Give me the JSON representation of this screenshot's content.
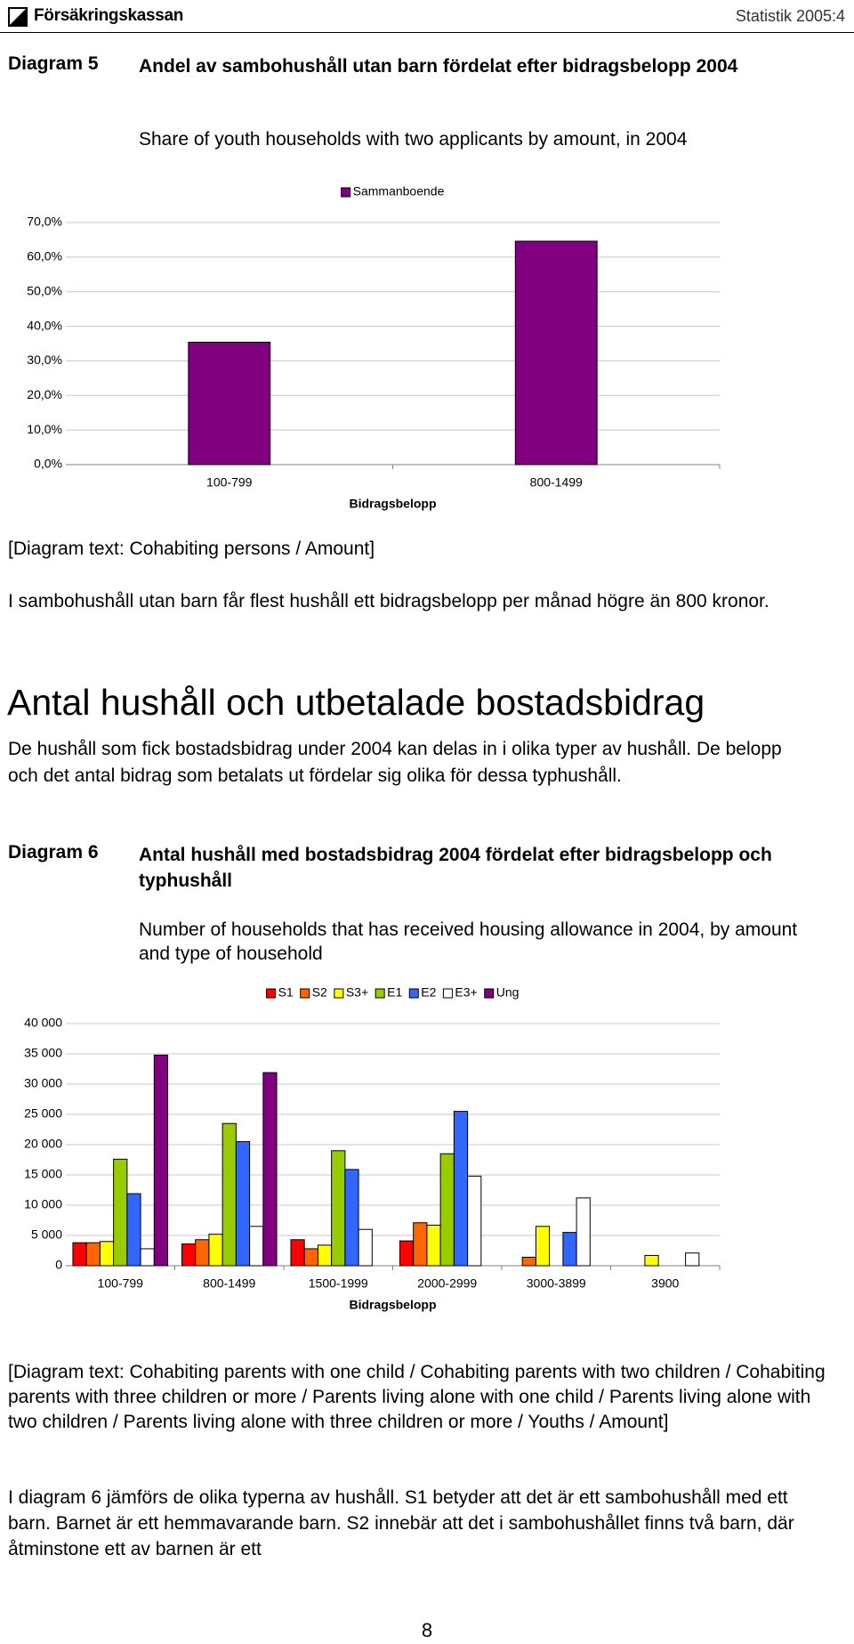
{
  "header": {
    "logo": "Försäkringskassan",
    "report": "Statistik 2005:4"
  },
  "diagram5": {
    "label": "Diagram 5",
    "title": "Andel av sambohushåll utan barn fördelat efter bidragsbelopp 2004",
    "subtitle": "Share of youth households with two applicants by amount, in 2004",
    "note": "[Diagram text: Cohabiting persons / Amount]"
  },
  "paragraph1": "I sambohushåll utan barn får flest hushåll ett bidragsbelopp per månad högre än 800 kronor.",
  "heading": "Antal hushåll och utbetalade bostadsbidrag",
  "paragraph2": "De hushåll som fick bostadsbidrag under 2004 kan delas in i olika typer av hushåll. De belopp och det antal bidrag som betalats ut fördelar sig olika för dessa typhushåll.",
  "diagram6": {
    "label": "Diagram 6",
    "title": "Antal hushåll med bostadsbidrag 2004 fördelat efter bidragsbelopp och typhushåll",
    "subtitle": "Number of households that has received housing allowance in 2004, by amount and type of household",
    "note": "[Diagram text: Cohabiting parents with one child / Cohabiting parents with two children / Cohabiting parents with three children or more / Parents living alone with one child / Parents living alone with two children / Parents living alone with three children or more / Youths / Amount]"
  },
  "paragraph3": "I diagram 6 jämförs de olika typerna av hushåll. S1 betyder att det är ett sambohushåll med ett barn. Barnet är ett hemmavarande barn. S2 innebär att det i sambohushållet finns två barn, där åtminstone ett av barnen är ett",
  "page_number": "8",
  "chart_data": [
    {
      "type": "bar",
      "x_label": "Bidragsbelopp",
      "categories": [
        "100-799",
        "800-1499"
      ],
      "series": [
        {
          "name": "Sammanboende",
          "color": "#800080",
          "values": [
            35.4,
            64.6
          ]
        }
      ],
      "ylim": [
        0,
        70
      ],
      "yticks": [
        {
          "value": 0,
          "label": "0,0%"
        },
        {
          "value": 10,
          "label": "10,0%"
        },
        {
          "value": 20,
          "label": "20,0%"
        },
        {
          "value": 30,
          "label": "30,0%"
        },
        {
          "value": 40,
          "label": "40,0%"
        },
        {
          "value": 50,
          "label": "50,0%"
        },
        {
          "value": 60,
          "label": "60,0%"
        },
        {
          "value": 70,
          "label": "70,0%"
        }
      ],
      "grid": true,
      "legend": "top"
    },
    {
      "type": "bar",
      "x_label": "Bidragsbelopp",
      "categories": [
        "100-799",
        "800-1499",
        "1500-1999",
        "2000-2999",
        "3000-3899",
        "3900"
      ],
      "series": [
        {
          "name": "S1",
          "color": "#ff0000",
          "values": [
            3800,
            3600,
            4300,
            4100,
            null,
            null
          ]
        },
        {
          "name": "S2",
          "color": "#ff6600",
          "values": [
            3800,
            4300,
            2800,
            7100,
            1400,
            null
          ]
        },
        {
          "name": "S3+",
          "color": "#ffff00",
          "values": [
            4000,
            5200,
            3400,
            6700,
            6500,
            1700
          ]
        },
        {
          "name": "E1",
          "color": "#99cc00",
          "values": [
            17600,
            23500,
            19000,
            18500,
            null,
            null
          ]
        },
        {
          "name": "E2",
          "color": "#3366ff",
          "values": [
            11900,
            20500,
            15900,
            25500,
            5500,
            null
          ]
        },
        {
          "name": "E3+",
          "color": "#ffffff",
          "values": [
            2800,
            6500,
            6000,
            14800,
            11200,
            2100
          ]
        },
        {
          "name": "Ung",
          "color": "#800080",
          "values": [
            34800,
            31900,
            null,
            null,
            null,
            null
          ]
        }
      ],
      "ylim": [
        0,
        40000
      ],
      "yticks": [
        0,
        {
          "value": 5000,
          "label": "5 000"
        },
        {
          "value": 10000,
          "label": "10 000"
        },
        {
          "value": 15000,
          "label": "15 000"
        },
        {
          "value": 20000,
          "label": "20 000"
        },
        {
          "value": 25000,
          "label": "25 000"
        },
        {
          "value": 30000,
          "label": "30 000"
        },
        {
          "value": 35000,
          "label": "35 000"
        },
        {
          "value": 40000,
          "label": "40 000"
        }
      ],
      "grid": true,
      "legend": "top"
    }
  ]
}
